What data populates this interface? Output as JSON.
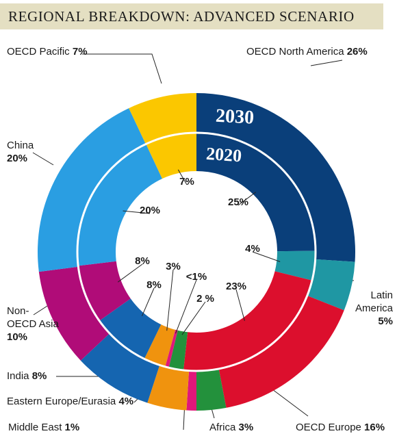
{
  "chart_data": {
    "type": "pie",
    "title": "REGIONAL BREAKDOWN: ADVANCED SCENARIO",
    "series": [
      {
        "name": "2030",
        "categories": [
          "OECD North America",
          "Latin America",
          "OECD Europe",
          "Africa",
          "Middle East",
          "Eastern Europe/Eurasia",
          "India",
          "Non-OECD Asia",
          "China",
          "OECD Pacific"
        ],
        "values": [
          26,
          5,
          16,
          3,
          1,
          4,
          8,
          10,
          20,
          7
        ],
        "value_labels": [
          "26%",
          "5%",
          "16%",
          "3%",
          "1%",
          "4%",
          "8%",
          "10%",
          "20%",
          "7%"
        ],
        "label_names": [
          "OECD North America",
          "Latin\nAmerica",
          "OECD Europe",
          "Africa",
          "Middle East",
          "Eastern Europe/Eurasia",
          "India",
          "Non-\nOECD Asia",
          "China",
          "OECD Pacific"
        ]
      },
      {
        "name": "2020",
        "categories": [
          "OECD North America",
          "Latin America",
          "OECD Europe",
          "Africa",
          "Middle East",
          "Eastern Europe/Eurasia",
          "India",
          "Non-OECD Asia",
          "China",
          "OECD Pacific"
        ],
        "values": [
          25,
          4,
          23,
          2,
          0.5,
          3,
          8,
          8,
          20,
          7
        ],
        "value_labels": [
          "25%",
          "4%",
          "23%",
          "2 %",
          "<1%",
          "3%",
          "8%",
          "8%",
          "20%",
          "7%"
        ]
      }
    ],
    "colors": {
      "OECD North America": "#0a3f7a",
      "Latin America": "#1f97a3",
      "OECD Europe": "#dc0f2d",
      "Africa": "#23913c",
      "Middle East": "#e0177a",
      "Eastern Europe/Eurasia": "#f0930e",
      "India": "#1565b0",
      "Non-OECD Asia": "#b00c78",
      "China": "#2a9ee2",
      "OECD Pacific": "#fbc700"
    }
  }
}
